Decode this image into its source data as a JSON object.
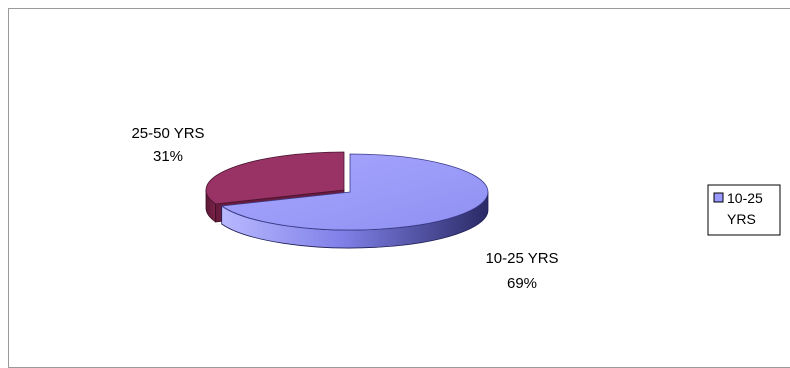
{
  "chart_data": {
    "type": "pie",
    "style": "3d-exploded",
    "categories": [
      "10-25 YRS",
      "25-50 YRS"
    ],
    "values": [
      69,
      31
    ],
    "unit": "%",
    "labels": [
      {
        "category": "10-25 YRS",
        "percent": "69%"
      },
      {
        "category": "25-50 YRS",
        "percent": "31%"
      }
    ],
    "legend": {
      "placement": "right",
      "entries": [
        "10-25 YRS"
      ]
    },
    "colors": {
      "10-25 YRS": "#9999ff",
      "25-50 YRS": "#993366"
    }
  }
}
